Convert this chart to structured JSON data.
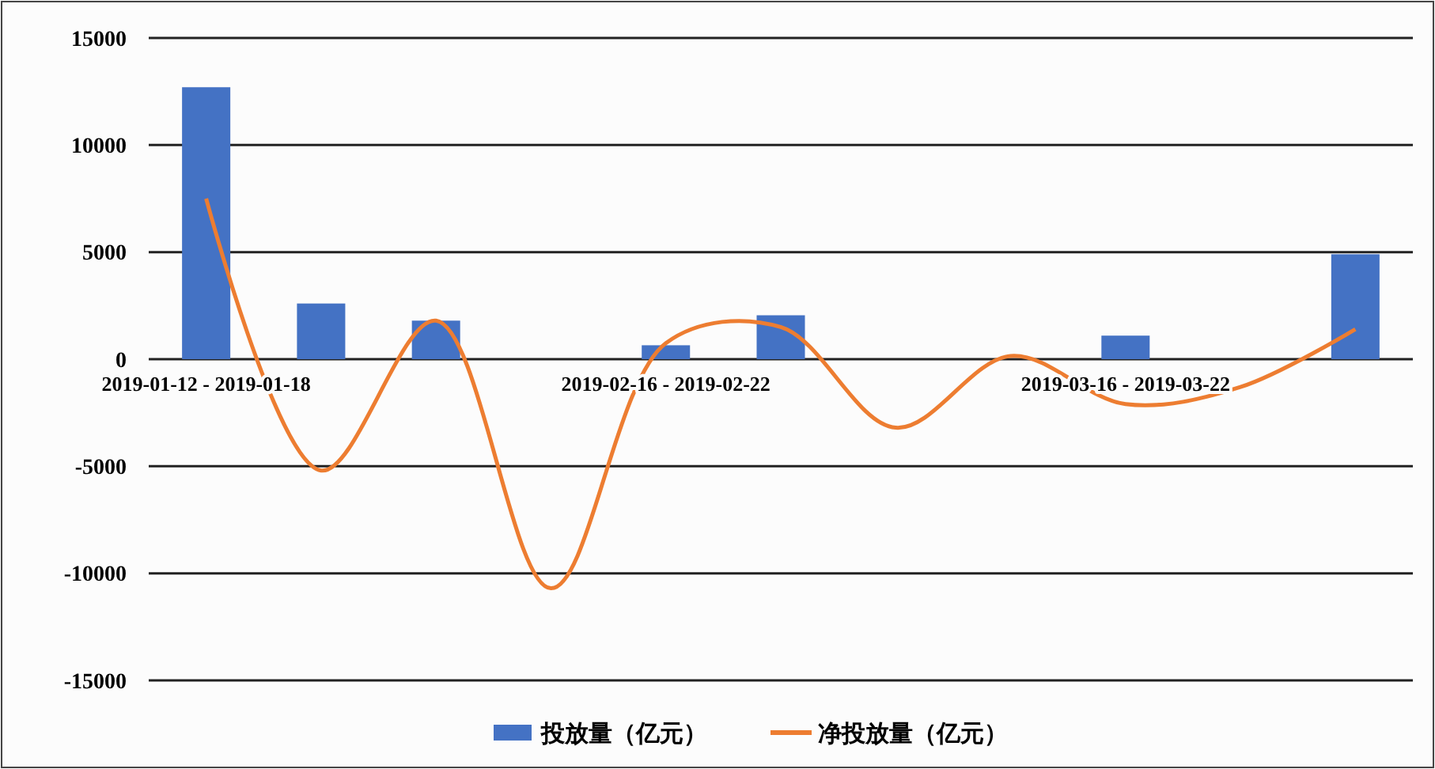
{
  "chart_data": {
    "type": "bar",
    "categories": [
      "2019-01-12 - 2019-01-18",
      null,
      null,
      null,
      "2019-02-16 - 2019-02-22",
      null,
      null,
      null,
      "2019-03-16 - 2019-03-22",
      null,
      null
    ],
    "series": [
      {
        "name": "投放量（亿元）",
        "color": "#4472c4",
        "values": [
          12700,
          2600,
          1800,
          null,
          650,
          2050,
          null,
          null,
          1100,
          null,
          4900
        ]
      },
      {
        "name": "净投放量（亿元）",
        "type": "line",
        "color": "#ed7d31",
        "values": [
          7500,
          -5200,
          1800,
          -10700,
          750,
          1500,
          -3200,
          150,
          -2100,
          -1300,
          1400
        ]
      }
    ],
    "ylim": [
      -15000,
      15000
    ],
    "yticks": [
      -15000,
      -10000,
      -5000,
      0,
      5000,
      10000,
      15000
    ],
    "grid": "y",
    "legend": "bottom",
    "marker": "none",
    "line_style": "solid"
  }
}
